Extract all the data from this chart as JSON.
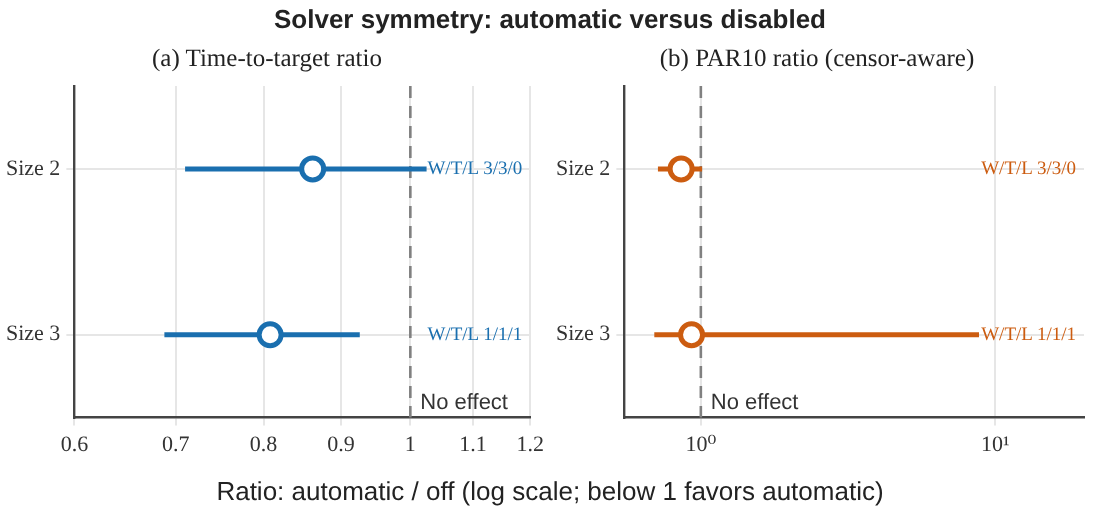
{
  "chart_data": [
    {
      "type": "scatter",
      "title": "Solver symmetry: automatic versus disabled",
      "subtitle": "(a) Time-to-target ratio",
      "xlabel": "Ratio: automatic / off (log scale; below 1 favors automatic)",
      "orientation": "horizontal",
      "categories": [
        "Size 2",
        "Size 3"
      ],
      "series": [
        {
          "color": "#1a6faf",
          "values": [
            0.862,
            0.808
          ],
          "errors": [
            [
              0.71,
              1.025
            ],
            [
              0.688,
              0.926
            ]
          ]
        }
      ],
      "xlim": [
        0.6,
        1.2
      ],
      "xticks": [
        0.6,
        0.7,
        0.8,
        0.9,
        1,
        1.1,
        1.2
      ],
      "log": "x",
      "grid": true,
      "marker": "circle",
      "ref_lines": [
        {
          "axis": "x",
          "value": 1,
          "label": "No effect",
          "color": "#808080",
          "line_style": "dashed"
        }
      ],
      "annotations": [
        "W/T/L 3/3/0",
        "W/T/L 1/1/1"
      ]
    },
    {
      "type": "scatter",
      "subtitle": "(b) PAR10 ratio (censor-aware)",
      "orientation": "horizontal",
      "categories": [
        "Size 2",
        "Size 3"
      ],
      "series": [
        {
          "color": "#cc5c10",
          "values": [
            0.857,
            0.93
          ],
          "errors": [
            [
              0.715,
              1.01
            ],
            [
              0.695,
              8.8
            ]
          ]
        }
      ],
      "xlim": [
        0.55,
        20
      ],
      "xticks": [
        {
          "value": 1,
          "label": "10⁰"
        },
        {
          "value": 10,
          "label": "10¹"
        }
      ],
      "log": "x",
      "grid": true,
      "marker": "circle",
      "ref_lines": [
        {
          "axis": "x",
          "value": 1,
          "label": "No effect",
          "color": "#808080",
          "line_style": "dashed"
        }
      ],
      "annotations": [
        "W/T/L 3/3/0",
        "W/T/L 1/1/1"
      ]
    }
  ]
}
